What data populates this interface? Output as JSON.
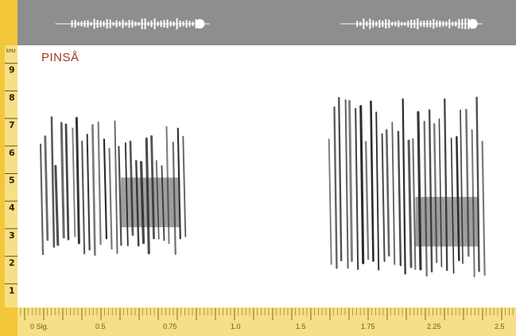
{
  "chart_data": {
    "type": "spectrogram",
    "title": "PINSÅ",
    "ylabel": "kHz",
    "ylim": [
      0,
      10
    ],
    "yticks": [
      1,
      2,
      3,
      4,
      5,
      6,
      7,
      8,
      9
    ],
    "xlim": [
      0,
      2.75
    ],
    "xtick_labels": [
      "0 Sig.",
      "0.5",
      "0.75",
      "1.0",
      "1.5",
      "1.75",
      "2.25",
      "2.5"
    ],
    "grid": false,
    "phrases": [
      {
        "start_s": 0.08,
        "end_s": 0.92,
        "freq_min_khz": 2.4,
        "freq_max_khz": 7.4,
        "dominant_khz": 4.3
      },
      {
        "start_s": 1.72,
        "end_s": 2.62,
        "freq_min_khz": 1.6,
        "freq_max_khz": 8.2,
        "dominant_khz": 3.6
      }
    ],
    "waveform_bursts": [
      {
        "start_s": 0.26,
        "end_s": 1.0
      },
      {
        "start_s": 1.88,
        "end_s": 2.55
      }
    ]
  },
  "colors": {
    "ruler_dark": "#f3c73a",
    "ruler_light": "#f6df86",
    "waveform_band": "#8d8e90",
    "title": "#a3341f",
    "ink": "#1a1a1a"
  }
}
